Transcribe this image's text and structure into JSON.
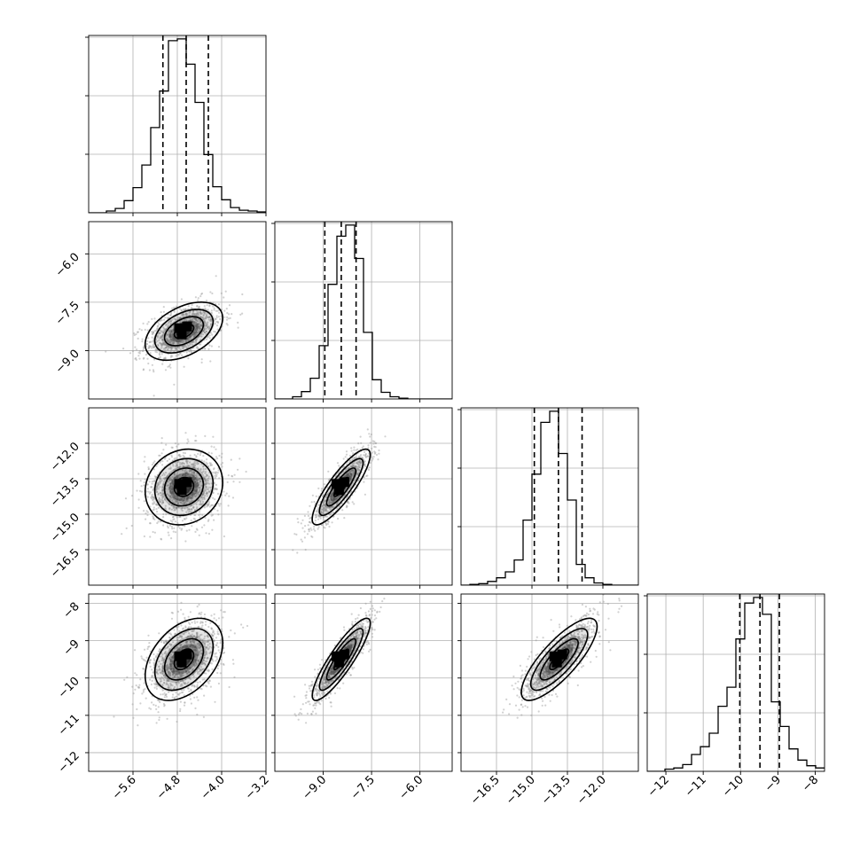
{
  "chart_data": {
    "type": "corner",
    "title": "",
    "grid": true,
    "parameters": [
      {
        "name": "",
        "range": [
          -6.4,
          -3.2
        ],
        "ticks": [
          -5.6,
          -4.8,
          -4.0,
          -3.2
        ],
        "tick_labels": [
          "−5.6",
          "−4.8",
          "−4.0",
          "−3.2"
        ],
        "quantiles": [
          -5.06,
          -4.64,
          -4.24
        ],
        "hist": {
          "type": "histogram",
          "bins_start": -6.4,
          "bin_width": 0.16,
          "counts": [
            0,
            0,
            2,
            5,
            14,
            29,
            55,
            98,
            140,
            198,
            200,
            171,
            127,
            67,
            30,
            15,
            6,
            3,
            2,
            1
          ]
        }
      },
      {
        "name": "",
        "range": [
          -10.5,
          -5.0
        ],
        "ticks": [
          -9.0,
          -7.5,
          -6.0
        ],
        "tick_labels": [
          "−9.0",
          "−7.5",
          "−6.0"
        ],
        "quantiles": [
          -8.95,
          -8.44,
          -7.98
        ],
        "hist": {
          "type": "histogram",
          "bins_start": -10.5,
          "bin_width": 0.275,
          "counts": [
            0,
            0,
            3,
            10,
            28,
            72,
            155,
            220,
            235,
            190,
            90,
            26,
            9,
            3,
            1,
            0,
            0,
            0,
            0,
            0
          ]
        }
      },
      {
        "name": "",
        "range": [
          -18.0,
          -10.5
        ],
        "ticks": [
          -16.5,
          -15.0,
          -13.5,
          -12.0
        ],
        "tick_labels": [
          "−16.5",
          "−15.0",
          "−13.5",
          "−12.0"
        ],
        "quantiles": [
          -14.9,
          -13.88,
          -12.88
        ],
        "hist": {
          "type": "histogram",
          "bins_start": -18.0,
          "bin_width": 0.375,
          "counts": [
            0,
            1,
            2,
            5,
            10,
            18,
            34,
            88,
            150,
            220,
            235,
            178,
            115,
            28,
            10,
            3,
            1,
            0,
            0,
            0
          ]
        }
      },
      {
        "name": "",
        "range": [
          -12.5,
          -7.75
        ],
        "ticks": [
          -12,
          -11,
          -10,
          -9,
          -8
        ],
        "tick_labels": [
          "−12",
          "−11",
          "−10",
          "−9",
          "−8"
        ],
        "quantiles": [
          -10.02,
          -9.48,
          -8.96
        ],
        "hist": {
          "type": "histogram",
          "bins_start": -12.5,
          "bin_width": 0.2375,
          "counts": [
            0,
            0,
            2,
            3,
            6,
            15,
            22,
            34,
            58,
            75,
            118,
            150,
            155,
            140,
            62,
            40,
            20,
            10,
            5,
            3
          ]
        }
      }
    ],
    "pairs": [
      {
        "row": 1,
        "col": 0,
        "mean": [
          -4.68,
          -8.4
        ],
        "sd": [
          0.35,
          0.45
        ],
        "rho": 0.45,
        "y_ticks": [
          -6.0,
          -7.5,
          -9.0
        ],
        "y_tick_labels": [
          "−6.0",
          "−7.5",
          "−9.0"
        ]
      },
      {
        "row": 2,
        "col": 0,
        "mean": [
          -4.68,
          -13.85
        ],
        "sd": [
          0.35,
          0.8
        ],
        "rho": 0.12,
        "y_ticks": [
          -12.0,
          -13.5,
          -15.0,
          -16.5
        ],
        "y_tick_labels": [
          "−12.0",
          "−13.5",
          "−15.0",
          "−16.5"
        ]
      },
      {
        "row": 2,
        "col": 1,
        "mean": [
          -8.44,
          -13.85
        ],
        "sd": [
          0.45,
          0.8
        ],
        "rho": 0.85
      },
      {
        "row": 3,
        "col": 0,
        "mean": [
          -4.68,
          -9.5
        ],
        "sd": [
          0.35,
          0.55
        ],
        "rho": 0.4,
        "y_ticks": [
          -8,
          -9,
          -10,
          -11,
          -12
        ],
        "y_tick_labels": [
          "−8",
          "−9",
          "−10",
          "−11",
          "−12"
        ]
      },
      {
        "row": 3,
        "col": 1,
        "mean": [
          -8.44,
          -9.5
        ],
        "sd": [
          0.45,
          0.55
        ],
        "rho": 0.88
      },
      {
        "row": 3,
        "col": 2,
        "mean": [
          -13.85,
          -9.5
        ],
        "sd": [
          0.8,
          0.55
        ],
        "rho": 0.8
      }
    ],
    "contour_levels_sigma": [
      0.5,
      1.0,
      1.5,
      2.0
    ],
    "colors": {
      "line": "#000000",
      "grid": "#b0b0b0",
      "points": "#9a9a9a",
      "density": "#000000"
    }
  }
}
